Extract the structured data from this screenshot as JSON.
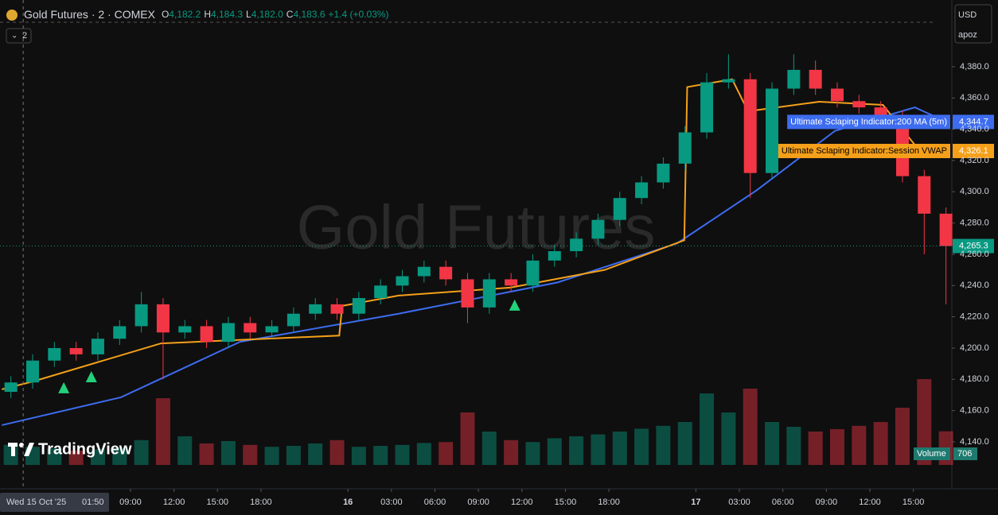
{
  "chart_data": {
    "type": "candlestick",
    "title": "Gold Futures · 2 · COMEX",
    "interval": "2",
    "watermark": "Gold Futures",
    "logo": "TradingView",
    "currency": "USD",
    "scale_mode": "apoz",
    "legend_ohlc": [
      {
        "label": "O",
        "value": "4,182.2"
      },
      {
        "label": "H",
        "value": "4,184.3"
      },
      {
        "label": "L",
        "value": "4,182.0"
      },
      {
        "label": "C",
        "value": "4,183.6"
      }
    ],
    "change": "+1.4 (+0.03%)",
    "up_color": "#089981",
    "down_color": "#f23645",
    "x": [
      0.75,
      2.25,
      3.75,
      5.25,
      6.75,
      8.25,
      9.75,
      11.25,
      12.75,
      14.25,
      15.75,
      17.25,
      18.75,
      20.25,
      21.75,
      23.25,
      24.75,
      26.25,
      27.75,
      29.25,
      30.75,
      32.25,
      33.75,
      35.25,
      36.75,
      38.25,
      39.75,
      41.25,
      42.75,
      44.25,
      45.75,
      47.25,
      48.75,
      50.25,
      51.75,
      53.25,
      54.75,
      56.25,
      57.75,
      59.25,
      60.75,
      62.25,
      63.75,
      65.25
    ],
    "open": [
      4172,
      4178,
      4192,
      4200,
      4196,
      4206,
      4214,
      4228,
      4210,
      4214,
      4204,
      4216,
      4210,
      4214,
      4222,
      4228,
      4222,
      4232,
      4240,
      4246,
      4252,
      4244,
      4226,
      4244,
      4240,
      4256,
      4262,
      4270,
      4282,
      4296,
      4306,
      4318,
      4338,
      4370,
      4372,
      4312,
      4366,
      4378,
      4366,
      4358,
      4354,
      4348,
      4310,
      4286
    ],
    "high": [
      4182,
      4196,
      4204,
      4204,
      4210,
      4218,
      4236,
      4232,
      4218,
      4218,
      4220,
      4220,
      4218,
      4226,
      4232,
      4232,
      4236,
      4244,
      4250,
      4256,
      4256,
      4248,
      4248,
      4248,
      4260,
      4266,
      4274,
      4286,
      4300,
      4310,
      4322,
      4342,
      4376,
      4388,
      4376,
      4370,
      4388,
      4384,
      4370,
      4362,
      4358,
      4352,
      4314,
      4290
    ],
    "low": [
      4168,
      4174,
      4188,
      4192,
      4192,
      4202,
      4210,
      4180,
      4206,
      4200,
      4200,
      4206,
      4206,
      4210,
      4218,
      4218,
      4218,
      4228,
      4236,
      4242,
      4240,
      4216,
      4222,
      4236,
      4236,
      4252,
      4258,
      4266,
      4278,
      4292,
      4302,
      4314,
      4334,
      4366,
      4296,
      4308,
      4362,
      4362,
      4354,
      4350,
      4344,
      4306,
      4260,
      4228
    ],
    "close": [
      4178,
      4192,
      4200,
      4196,
      4206,
      4214,
      4228,
      4210,
      4214,
      4204,
      4216,
      4210,
      4214,
      4222,
      4228,
      4222,
      4232,
      4240,
      4246,
      4252,
      4244,
      4226,
      4244,
      4240,
      4256,
      4262,
      4270,
      4282,
      4296,
      4306,
      4318,
      4338,
      4370,
      4372,
      4312,
      4366,
      4378,
      4366,
      4358,
      4354,
      4348,
      4310,
      4286,
      4265.3
    ],
    "close_label": "4,265.3",
    "lines": [
      {
        "name": "Ultimate Sclaping Indicator:200 MA (5m)",
        "color": "#3d6cf0",
        "x": [
          0.13,
          8.34,
          16.56,
          27.5,
          38.46,
          46.7,
          52.2,
          57.6,
          63.1,
          65.3
        ],
        "values": [
          4150.7,
          4168.5,
          4204,
          4222,
          4242,
          4267,
          4301,
          4339,
          4354,
          4344.7
        ],
        "last_label": "4,344.7"
      },
      {
        "name": "Ultimate Sclaping Indicator:Session VWAP",
        "color": "#f5a01a",
        "x": [
          0.13,
          2.3,
          11.1,
          23.4,
          23.6,
          27.5,
          35.2,
          41.7,
          47.2,
          47.4,
          50.5,
          51.6,
          56.5,
          60.9,
          63.1,
          65.3
        ],
        "values": [
          4173.6,
          4178.7,
          4203,
          4208,
          4227,
          4233.6,
          4238.7,
          4250,
          4269,
          4367,
          4372,
          4351.5,
          4357.6,
          4355.6,
          4330,
          4326.1
        ],
        "last_label": "4,326.1"
      }
    ],
    "signals": {
      "color": "#22d17a",
      "x": [
        4.4,
        6.3,
        35.5
      ],
      "values": [
        4174.6,
        4181.7,
        4227.5
      ]
    },
    "volume": {
      "name": "Volume",
      "vlim": [
        0,
        2500
      ],
      "values": [
        420,
        380,
        350,
        300,
        330,
        360,
        520,
        1400,
        600,
        450,
        500,
        420,
        380,
        400,
        450,
        520,
        380,
        400,
        420,
        460,
        480,
        1100,
        700,
        520,
        480,
        560,
        600,
        640,
        700,
        760,
        820,
        900,
        1500,
        1100,
        1600,
        900,
        800,
        700,
        750,
        820,
        900,
        1200,
        1800,
        706
      ]
    },
    "crosshair": {
      "x": 1.6,
      "date_label": "Wed 15 Oct '25",
      "time_label": "01:50"
    },
    "xlim": [
      0,
      65.6
    ],
    "xticks": [
      {
        "value": 9,
        "label": "09:00"
      },
      {
        "value": 12,
        "label": "12:00"
      },
      {
        "value": 15,
        "label": "15:00"
      },
      {
        "value": 18,
        "label": "18:00"
      },
      {
        "value": 24,
        "label": "16"
      },
      {
        "value": 27,
        "label": "03:00"
      },
      {
        "value": 30,
        "label": "06:00"
      },
      {
        "value": 33,
        "label": "09:00"
      },
      {
        "value": 36,
        "label": "12:00"
      },
      {
        "value": 39,
        "label": "15:00"
      },
      {
        "value": 42,
        "label": "18:00"
      },
      {
        "value": 48,
        "label": "17"
      },
      {
        "value": 51,
        "label": "03:00"
      },
      {
        "value": 54,
        "label": "06:00"
      },
      {
        "value": 57,
        "label": "09:00"
      },
      {
        "value": 60,
        "label": "12:00"
      },
      {
        "value": 63,
        "label": "15:00"
      }
    ],
    "ylim": [
      4122.7,
      4422.7
    ],
    "yticks": [
      {
        "value": 4140,
        "label": "4,140.0"
      },
      {
        "value": 4160,
        "label": "4,160.0"
      },
      {
        "value": 4180,
        "label": "4,180.0"
      },
      {
        "value": 4200,
        "label": "4,200.0"
      },
      {
        "value": 4220,
        "label": "4,220.0"
      },
      {
        "value": 4240,
        "label": "4,240.0"
      },
      {
        "value": 4260,
        "label": "4,260.0"
      },
      {
        "value": 4280,
        "label": "4,280.0"
      },
      {
        "value": 4300,
        "label": "4,300.0"
      },
      {
        "value": 4320,
        "label": "4,320.0"
      },
      {
        "value": 4340,
        "label": "4,340.0"
      },
      {
        "value": 4360,
        "label": "4,360.0"
      },
      {
        "value": 4380,
        "label": "4,380.0"
      }
    ],
    "grid": false
  }
}
